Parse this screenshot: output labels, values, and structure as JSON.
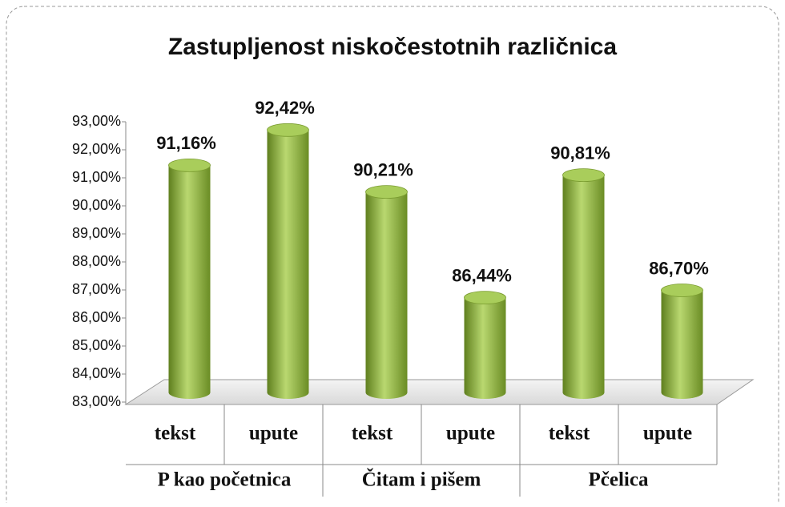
{
  "chart_data": {
    "type": "bar",
    "title": "Zastupljenost niskočestotnih različnica",
    "categories": [
      "tekst",
      "upute",
      "tekst",
      "upute",
      "tekst",
      "upute"
    ],
    "category_groups": [
      "P kao početnica",
      "Čitam i pišem",
      "Pčelica"
    ],
    "values": [
      91.16,
      92.42,
      90.21,
      86.44,
      90.81,
      86.7
    ],
    "value_labels": [
      "91,16%",
      "92,42%",
      "90,21%",
      "86,44%",
      "90,81%",
      "86,70%"
    ],
    "color": "#8fb83e",
    "ylim": [
      83,
      93
    ],
    "yticks": [
      {
        "value": 83,
        "label": "83,00%"
      },
      {
        "value": 84,
        "label": "84,00%"
      },
      {
        "value": 85,
        "label": "85,00%"
      },
      {
        "value": 86,
        "label": "86,00%"
      },
      {
        "value": 87,
        "label": "87,00%"
      },
      {
        "value": 88,
        "label": "88,00%"
      },
      {
        "value": 89,
        "label": "89,00%"
      },
      {
        "value": 90,
        "label": "90,00%"
      },
      {
        "value": 91,
        "label": "91,00%"
      },
      {
        "value": 92,
        "label": "92,00%"
      },
      {
        "value": 93,
        "label": "93,00%"
      }
    ],
    "grid": false
  }
}
